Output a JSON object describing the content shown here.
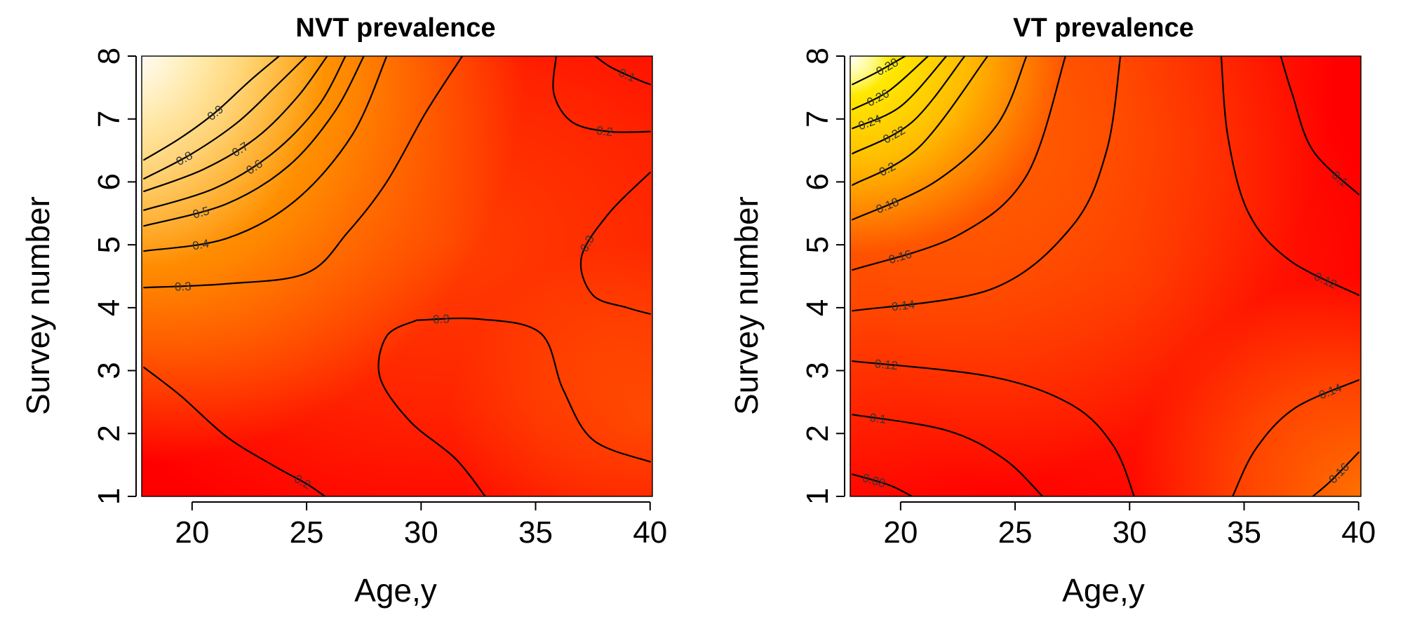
{
  "colors": {
    "low": "#FF0000",
    "mid": "#FF8C00",
    "high": "#FFFF00",
    "top": "#FFFFFF",
    "contour": "#000000"
  },
  "chart_data": [
    {
      "type": "heatmap",
      "title": "NVT prevalence",
      "xlabel": "Age,y",
      "ylabel": "Survey number",
      "xlim": [
        17.8,
        40.1
      ],
      "ylim": [
        1,
        8
      ],
      "xticks": [
        20,
        25,
        30,
        35,
        40
      ],
      "yticks": [
        1,
        2,
        3,
        4,
        5,
        6,
        7,
        8
      ],
      "color_scale": "heat (red → orange → yellow → white)",
      "value_range": [
        0.1,
        1.0
      ],
      "grid": false,
      "contour_levels": [
        0.1,
        0.2,
        0.3,
        0.4,
        0.5,
        0.6,
        0.7,
        0.8,
        0.9
      ],
      "contour_label_text": [
        "0.9",
        "0.8",
        "0.7",
        "0.6",
        "0.5",
        "0.4",
        "0.3",
        "0.3",
        "0.3",
        "0.2",
        "0.2",
        "0.1"
      ],
      "contours": [
        {
          "level": 0.9,
          "points": [
            [
              17.9,
              6.35
            ],
            [
              19.5,
              6.7
            ],
            [
              21.0,
              7.1
            ],
            [
              22.5,
              7.6
            ],
            [
              23.8,
              8.0
            ]
          ]
        },
        {
          "level": 0.8,
          "points": [
            [
              17.9,
              6.05
            ],
            [
              20.0,
              6.45
            ],
            [
              22.0,
              6.95
            ],
            [
              23.6,
              7.5
            ],
            [
              25.0,
              8.0
            ]
          ]
        },
        {
          "level": 0.7,
          "points": [
            [
              17.9,
              5.85
            ],
            [
              20.5,
              6.2
            ],
            [
              22.8,
              6.7
            ],
            [
              24.6,
              7.35
            ],
            [
              25.9,
              8.0
            ]
          ]
        },
        {
          "level": 0.6,
          "points": [
            [
              17.9,
              5.55
            ],
            [
              21.0,
              5.9
            ],
            [
              23.5,
              6.45
            ],
            [
              25.5,
              7.2
            ],
            [
              26.7,
              8.0
            ]
          ]
        },
        {
          "level": 0.5,
          "points": [
            [
              17.9,
              5.3
            ],
            [
              21.5,
              5.65
            ],
            [
              24.2,
              6.25
            ],
            [
              26.2,
              7.1
            ],
            [
              27.5,
              8.0
            ]
          ]
        },
        {
          "level": 0.4,
          "points": [
            [
              17.9,
              4.9
            ],
            [
              21.5,
              5.1
            ],
            [
              24.5,
              5.7
            ],
            [
              27.0,
              6.75
            ],
            [
              28.5,
              8.0
            ]
          ]
        },
        {
          "level": 0.3,
          "points": [
            [
              17.9,
              4.32
            ],
            [
              21.5,
              4.38
            ],
            [
              25.0,
              4.55
            ],
            [
              26.8,
              5.2
            ],
            [
              28.5,
              6.0
            ],
            [
              30.2,
              7.1
            ],
            [
              31.8,
              8.0
            ]
          ]
        },
        {
          "level": 0.3,
          "points": [
            [
              29.8,
              3.8
            ],
            [
              32.5,
              3.82
            ],
            [
              35.2,
              3.6
            ],
            [
              36.2,
              2.7
            ],
            [
              37.5,
              1.9
            ],
            [
              40.0,
              1.55
            ]
          ]
        },
        {
          "level": 0.3,
          "points": [
            [
              29.8,
              3.8
            ],
            [
              28.5,
              3.55
            ],
            [
              28.2,
              2.9
            ],
            [
              29.5,
              2.2
            ],
            [
              31.5,
              1.6
            ],
            [
              32.8,
              1.0
            ]
          ]
        },
        {
          "level": 0.3,
          "points": [
            [
              40.0,
              6.15
            ],
            [
              38.2,
              5.5
            ],
            [
              37.0,
              4.8
            ],
            [
              37.5,
              4.2
            ],
            [
              39.0,
              4.0
            ],
            [
              40.0,
              3.9
            ]
          ]
        },
        {
          "level": 0.2,
          "points": [
            [
              17.9,
              3.05
            ],
            [
              19.5,
              2.6
            ],
            [
              21.5,
              1.95
            ],
            [
              23.5,
              1.5
            ],
            [
              25.0,
              1.2
            ],
            [
              25.8,
              1.0
            ]
          ]
        },
        {
          "level": 0.2,
          "points": [
            [
              35.9,
              8.0
            ],
            [
              35.8,
              7.4
            ],
            [
              36.6,
              6.95
            ],
            [
              38.2,
              6.8
            ],
            [
              40.0,
              6.8
            ]
          ]
        },
        {
          "level": 0.1,
          "points": [
            [
              37.6,
              8.0
            ],
            [
              38.3,
              7.82
            ],
            [
              39.5,
              7.62
            ],
            [
              40.0,
              7.55
            ]
          ]
        }
      ]
    },
    {
      "type": "heatmap",
      "title": "VT prevalence",
      "xlabel": "Age,y",
      "ylabel": "Survey number",
      "xlim": [
        17.8,
        40.1
      ],
      "ylim": [
        1,
        8
      ],
      "xticks": [
        20,
        25,
        30,
        35,
        40
      ],
      "yticks": [
        1,
        2,
        3,
        4,
        5,
        6,
        7,
        8
      ],
      "color_scale": "heat (red → orange → yellow → white)",
      "value_range": [
        0.08,
        0.29
      ],
      "grid": false,
      "contour_levels": [
        0.08,
        0.1,
        0.12,
        0.14,
        0.16,
        0.18,
        0.2,
        0.22,
        0.24,
        0.26,
        0.28
      ],
      "contour_label_text": [
        "0.28",
        "0.26",
        "0.24",
        "0.22",
        "0.2",
        "0.18",
        "0.16",
        "0.14",
        "0.12",
        "0.1",
        "0.08",
        "0.1",
        "0.12",
        "0.14",
        "0.16"
      ],
      "contours": [
        {
          "level": 0.28,
          "points": [
            [
              17.9,
              7.55
            ],
            [
              19.0,
              7.75
            ],
            [
              20.2,
              8.0
            ]
          ]
        },
        {
          "level": 0.26,
          "points": [
            [
              17.9,
              7.15
            ],
            [
              19.5,
              7.45
            ],
            [
              21.2,
              8.0
            ]
          ]
        },
        {
          "level": 0.24,
          "points": [
            [
              17.9,
              6.85
            ],
            [
              20.0,
              7.2
            ],
            [
              22.0,
              8.0
            ]
          ]
        },
        {
          "level": 0.22,
          "points": [
            [
              17.9,
              6.45
            ],
            [
              20.5,
              6.95
            ],
            [
              22.8,
              8.0
            ]
          ]
        },
        {
          "level": 0.2,
          "points": [
            [
              17.9,
              5.95
            ],
            [
              20.8,
              6.55
            ],
            [
              23.8,
              8.0
            ]
          ]
        },
        {
          "level": 0.18,
          "points": [
            [
              17.9,
              5.4
            ],
            [
              21.5,
              6.0
            ],
            [
              24.2,
              6.9
            ],
            [
              25.5,
              8.0
            ]
          ]
        },
        {
          "level": 0.16,
          "points": [
            [
              17.9,
              4.6
            ],
            [
              22.5,
              5.15
            ],
            [
              25.5,
              6.1
            ],
            [
              27.2,
              8.0
            ]
          ]
        },
        {
          "level": 0.14,
          "points": [
            [
              17.9,
              3.95
            ],
            [
              24.0,
              4.3
            ],
            [
              27.5,
              5.3
            ],
            [
              29.0,
              6.5
            ],
            [
              29.6,
              8.0
            ]
          ]
        },
        {
          "level": 0.12,
          "points": [
            [
              17.9,
              3.15
            ],
            [
              24.0,
              2.9
            ],
            [
              27.5,
              2.45
            ],
            [
              29.3,
              1.8
            ],
            [
              30.2,
              1.0
            ]
          ]
        },
        {
          "level": 0.1,
          "points": [
            [
              17.9,
              2.3
            ],
            [
              22.0,
              2.05
            ],
            [
              24.5,
              1.6
            ],
            [
              26.2,
              1.0
            ]
          ]
        },
        {
          "level": 0.08,
          "points": [
            [
              17.9,
              1.35
            ],
            [
              19.5,
              1.18
            ],
            [
              20.5,
              1.0
            ]
          ]
        },
        {
          "level": 0.12,
          "points": [
            [
              34.0,
              8.0
            ],
            [
              34.3,
              6.7
            ],
            [
              35.2,
              5.5
            ],
            [
              37.0,
              4.75
            ],
            [
              40.0,
              4.2
            ]
          ]
        },
        {
          "level": 0.1,
          "points": [
            [
              36.6,
              8.0
            ],
            [
              37.1,
              7.4
            ],
            [
              38.0,
              6.5
            ],
            [
              40.0,
              5.8
            ]
          ]
        },
        {
          "level": 0.14,
          "points": [
            [
              34.5,
              1.0
            ],
            [
              35.5,
              1.75
            ],
            [
              37.2,
              2.4
            ],
            [
              40.0,
              2.85
            ]
          ]
        },
        {
          "level": 0.16,
          "points": [
            [
              38.0,
              1.0
            ],
            [
              38.8,
              1.25
            ],
            [
              40.0,
              1.7
            ]
          ]
        }
      ]
    }
  ]
}
